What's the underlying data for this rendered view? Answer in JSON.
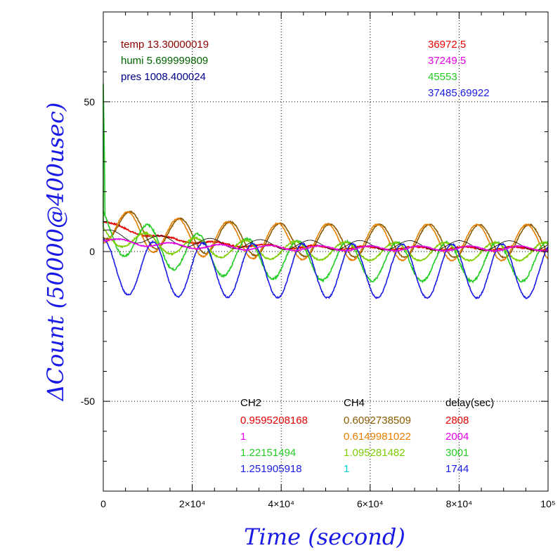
{
  "chart_data": {
    "type": "line",
    "xlabel": "Time (second)",
    "ylabel": "ΔCount (50000@400usec)",
    "xlim": [
      0,
      100000
    ],
    "ylim": [
      -80,
      80
    ],
    "grid": true,
    "x_ticks": [
      {
        "value": 0,
        "label": "0"
      },
      {
        "value": 20000,
        "label": "2×10⁴"
      },
      {
        "value": 40000,
        "label": "4×10⁴"
      },
      {
        "value": 60000,
        "label": "6×10⁴"
      },
      {
        "value": 80000,
        "label": "8×10⁴"
      },
      {
        "value": 100000,
        "label": "10⁵"
      }
    ],
    "y_ticks": [
      {
        "value": 50,
        "label": "50"
      },
      {
        "value": 0,
        "label": "0"
      },
      {
        "value": -50,
        "label": "-50"
      }
    ],
    "env_text": [
      {
        "text": "temp 13.30000019",
        "color": "#8b0000"
      },
      {
        "text": "humi 5.699999809",
        "color": "#006400"
      },
      {
        "text": "pres 1008.400024",
        "color": "#00008b"
      }
    ],
    "count_text": [
      {
        "text": "36972.5",
        "color": "#e60000"
      },
      {
        "text": "37249.5",
        "color": "#e600e6"
      },
      {
        "text": "45553",
        "color": "#22cc22"
      },
      {
        "text": "37485.69922",
        "color": "#1a1ae6"
      }
    ],
    "table": {
      "headers": [
        "CH2",
        "CH4",
        "delay(sec)"
      ],
      "rows": [
        {
          "ch2": "0.9595208168",
          "ch2_color": "#e60000",
          "ch4": "0.6092738509",
          "ch4_color": "#8b5a00",
          "delay": "2808",
          "delay_color": "#e60000"
        },
        {
          "ch2": "1",
          "ch2_color": "#e600e6",
          "ch4": "0.6149981022",
          "ch4_color": "#e67e00",
          "delay": "2004",
          "delay_color": "#e600e6"
        },
        {
          "ch2": "1.22151494",
          "ch2_color": "#22cc22",
          "ch4": "1.095281482",
          "ch4_color": "#7ccd00",
          "delay": "3001",
          "delay_color": "#22cc22"
        },
        {
          "ch2": "1.251905918",
          "ch2_color": "#1a1ae6",
          "ch4": "1",
          "ch4_color": "#00cccc",
          "delay": "1744",
          "delay_color": "#1a1ae6"
        }
      ]
    },
    "series": [
      {
        "color": "#e60000",
        "baseline": 10,
        "decay": 2.5,
        "tail": 1,
        "amp": 0.6,
        "period": 11200,
        "phase": 0.0,
        "noise": 0.5
      },
      {
        "color": "#8b5a00",
        "baseline": 10,
        "decay": 6,
        "tail": 3.5,
        "amp": 5.5,
        "period": 11200,
        "phase": 0.7,
        "noise": 0.4
      },
      {
        "color": "#e67e00",
        "baseline": 9,
        "decay": 5,
        "tail": 3,
        "amp": 6,
        "period": 11200,
        "phase": 0.75,
        "noise": 0.4
      },
      {
        "color": "#22cc22",
        "baseline": 8,
        "decay": 6,
        "tail": -3.5,
        "amp": 6.5,
        "period": 11200,
        "phase": 0.35,
        "noise": 0.7
      },
      {
        "color": "#7ccd00",
        "baseline": 6,
        "decay": 4,
        "tail": 0,
        "amp": 3,
        "period": 11200,
        "phase": 0.4,
        "noise": 0.5
      },
      {
        "color": "#1a1ae6",
        "baseline": -5,
        "decay": 2,
        "tail": -6.5,
        "amp": 9,
        "period": 11200,
        "phase": 0.25,
        "noise": 0.5
      },
      {
        "color": "#000000",
        "baseline": 6,
        "decay": 2,
        "tail": 2,
        "amp": 1.6,
        "period": 11200,
        "phase": 1.1,
        "noise": 0.1
      },
      {
        "color": "#e600e6",
        "baseline": 4,
        "decay": 3,
        "tail": 1,
        "amp": 0.8,
        "period": 11200,
        "phase": 0.9,
        "noise": 0.3
      }
    ]
  }
}
